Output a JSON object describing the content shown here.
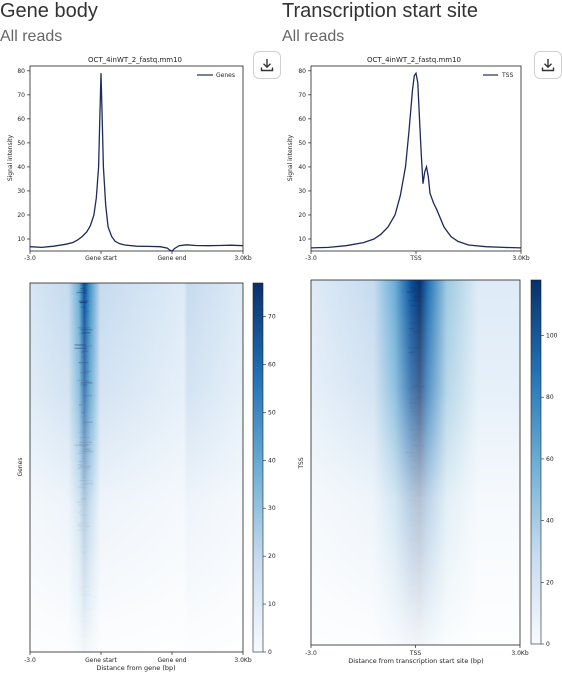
{
  "panels": [
    {
      "title": "Gene body",
      "subtitle": "All reads",
      "download_icon": "download-icon",
      "profile_title": "OCT_4inWT_2_fastq.mm10",
      "legend": "Genes",
      "ylabel": "Signal intensity",
      "heatmap_ylabel": "Genes",
      "xticks": [
        "-3.0",
        "Gene start",
        "Gene end",
        "3.0Kb"
      ],
      "heatmap_xlabel": "Distance from gene (bp)"
    },
    {
      "title": "Transcription start site",
      "subtitle": "All reads",
      "download_icon": "download-icon",
      "profile_title": "OCT_4inWT_2_fastq.mm10",
      "legend": "TSS",
      "ylabel": "Signal intensity",
      "heatmap_ylabel": "TSS",
      "xticks": [
        "-3.0",
        "TSS",
        "3.0Kb"
      ],
      "heatmap_xlabel": "Distance from transcription start site (bp)"
    }
  ],
  "colors": {
    "line": "#1f2a5c",
    "heat_low": "#f7fbff",
    "heat_high": "#08306b"
  },
  "chart_data": [
    {
      "type": "line",
      "title": "OCT_4inWT_2_fastq.mm10",
      "xlabel": "",
      "ylabel": "Signal intensity",
      "x_ticks": [
        "-3.0",
        "Gene start",
        "Gene end",
        "3.0Kb"
      ],
      "x_range": [
        -3.0,
        6.0
      ],
      "x_tick_positions": [
        -3.0,
        0.0,
        3.0,
        6.0
      ],
      "ylim": [
        5,
        82
      ],
      "yticks": [
        10,
        20,
        30,
        40,
        50,
        60,
        70,
        80
      ],
      "legend_position": "top-right",
      "series": [
        {
          "name": "Genes",
          "x": [
            -3.0,
            -2.5,
            -2.0,
            -1.5,
            -1.2,
            -1.0,
            -0.8,
            -0.6,
            -0.45,
            -0.3,
            -0.2,
            -0.1,
            -0.05,
            0.0,
            0.05,
            0.1,
            0.2,
            0.3,
            0.45,
            0.6,
            0.8,
            1.0,
            1.5,
            2.0,
            2.5,
            2.8,
            2.9,
            3.0,
            3.1,
            3.3,
            3.6,
            4.0,
            4.5,
            5.0,
            5.5,
            6.0
          ],
          "y": [
            6.8,
            6.5,
            7.0,
            7.8,
            8.5,
            9.5,
            11.0,
            13.0,
            15.5,
            20.0,
            27.0,
            40.0,
            60.0,
            79.0,
            60.0,
            40.0,
            24.0,
            15.0,
            11.0,
            9.0,
            8.0,
            7.5,
            7.0,
            6.9,
            6.8,
            6.2,
            5.4,
            4.9,
            6.0,
            7.2,
            7.6,
            7.3,
            7.2,
            7.3,
            7.4,
            7.2
          ]
        }
      ]
    },
    {
      "type": "line",
      "title": "OCT_4inWT_2_fastq.mm10",
      "xlabel": "",
      "ylabel": "Signal intensity",
      "x_ticks": [
        "-3.0",
        "TSS",
        "3.0Kb"
      ],
      "x_range": [
        -3.0,
        3.0
      ],
      "x_tick_positions": [
        -3.0,
        0.0,
        3.0
      ],
      "ylim": [
        5,
        82
      ],
      "yticks": [
        10,
        20,
        30,
        40,
        50,
        60,
        70,
        80
      ],
      "legend_position": "top-right",
      "series": [
        {
          "name": "TSS",
          "x": [
            -3.0,
            -2.5,
            -2.0,
            -1.5,
            -1.2,
            -1.0,
            -0.8,
            -0.6,
            -0.45,
            -0.3,
            -0.2,
            -0.1,
            -0.05,
            0.0,
            0.05,
            0.1,
            0.15,
            0.2,
            0.25,
            0.3,
            0.35,
            0.4,
            0.5,
            0.6,
            0.8,
            1.0,
            1.2,
            1.5,
            2.0,
            2.5,
            3.0
          ],
          "y": [
            6.3,
            6.5,
            7.2,
            8.5,
            10.0,
            12.0,
            15.0,
            20.0,
            28.0,
            40.0,
            55.0,
            72.0,
            78.0,
            79.0,
            75.0,
            60.0,
            45.0,
            33.0,
            38.0,
            40.0,
            36.0,
            29.0,
            25.0,
            22.0,
            15.0,
            11.0,
            9.0,
            7.5,
            6.8,
            6.5,
            6.3
          ]
        }
      ]
    },
    {
      "type": "heatmap",
      "title": "",
      "xlabel": "Distance from gene (bp)",
      "ylabel": "Genes",
      "x_ticks": [
        "-3.0",
        "Gene start",
        "Gene end",
        "3.0Kb"
      ],
      "colorbar_ticks": [
        0,
        10,
        20,
        30,
        40,
        50,
        60,
        70
      ],
      "colorbar_range": [
        0,
        77
      ],
      "cmap": "Blues"
    },
    {
      "type": "heatmap",
      "title": "",
      "xlabel": "Distance from transcription start site (bp)",
      "ylabel": "TSS",
      "x_ticks": [
        "-3.0",
        "TSS",
        "3.0Kb"
      ],
      "colorbar_ticks": [
        0,
        20,
        40,
        60,
        80,
        100
      ],
      "colorbar_range": [
        0,
        118
      ],
      "cmap": "Blues"
    }
  ]
}
